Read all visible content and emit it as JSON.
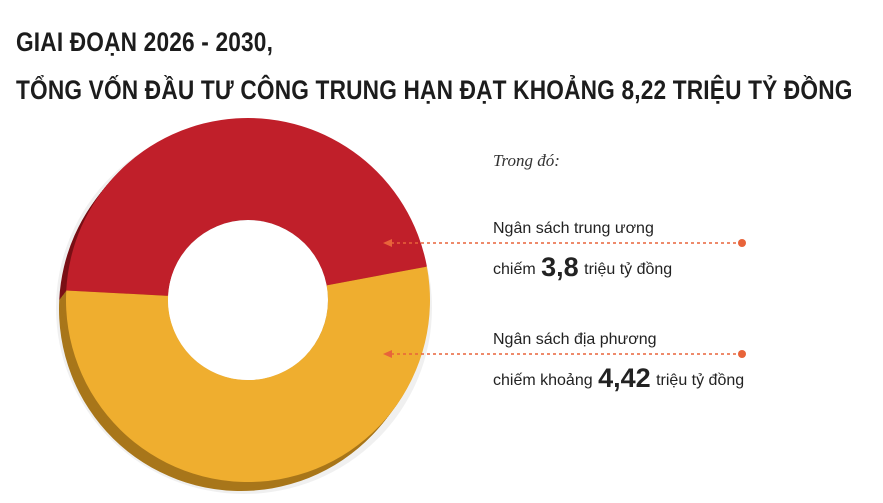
{
  "header": {
    "line1": "GIAI ĐOẠN 2026 - 2030,",
    "line2": "TỔNG VỐN ĐẦU TƯ CÔNG TRUNG HẠN ĐẠT KHOẢNG 8,22 TRIỆU TỶ ĐỒNG"
  },
  "note": "Trong đó:",
  "colors": {
    "central": "#c01f2a",
    "central_side": "#7a1016",
    "local": "#efae2f",
    "local_side": "#a8761a",
    "leader": "#e8643a"
  },
  "chart_data": {
    "type": "pie",
    "categories": [
      "Ngân sách trung ương",
      "Ngân sách địa phương"
    ],
    "values": [
      3.8,
      4.42
    ],
    "total": 8.22,
    "unit": "triệu tỷ đồng"
  },
  "callouts": [
    {
      "name": "Ngân sách trung ương",
      "prefix": "chiếm",
      "value": "3,8",
      "suffix": "triệu tỷ đồng"
    },
    {
      "name": "Ngân sách địa phương",
      "prefix": "chiếm khoảng",
      "value": "4,42",
      "suffix": "triệu tỷ đồng"
    }
  ]
}
